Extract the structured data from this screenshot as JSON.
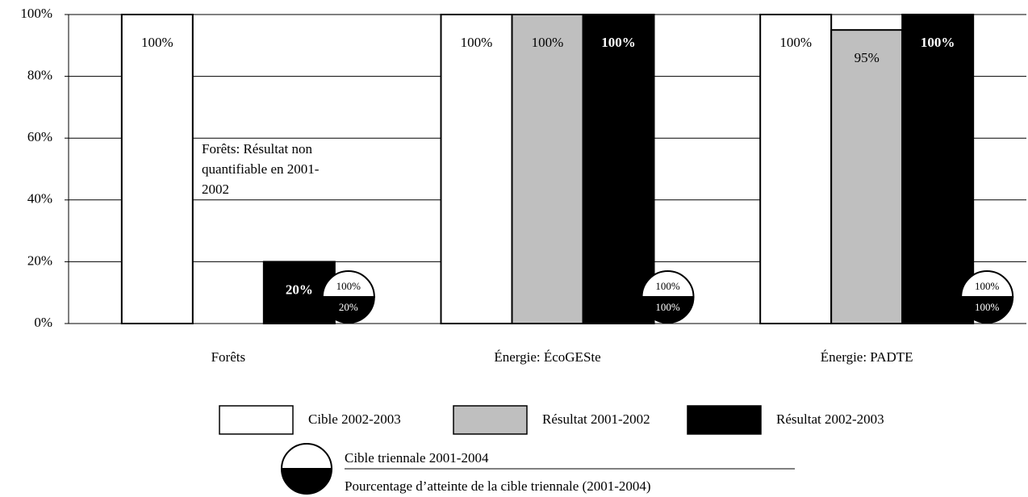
{
  "chart_data": {
    "type": "bar",
    "categories": [
      "Forêts",
      "Énergie: ÉcoGESte",
      "Énergie: PADTE"
    ],
    "series": [
      {
        "name": "Cible 2002-2003",
        "color": "#ffffff",
        "values": [
          100,
          100,
          100
        ],
        "value_labels": [
          "100%",
          "100%",
          "100%"
        ]
      },
      {
        "name": "Résultat 2001-2002",
        "color": "#bfbfbf",
        "values": [
          null,
          100,
          95
        ],
        "value_labels": [
          null,
          "100%",
          "95%"
        ]
      },
      {
        "name": "Résultat 2002-2003",
        "color": "#000000",
        "values": [
          20,
          100,
          100
        ],
        "value_labels": [
          "20%",
          "100%",
          "100%"
        ]
      }
    ],
    "triennial_target": {
      "name": "Cible triennale 2001-2004",
      "values": [
        100,
        100,
        100
      ],
      "value_labels": [
        "100%",
        "100%",
        "100%"
      ]
    },
    "triennial_attainment": {
      "name": "Pourcentage d’atteinte de la cible triennale (2001-2004)",
      "values": [
        20,
        100,
        100
      ],
      "value_labels": [
        "20%",
        "100%",
        "100%"
      ]
    },
    "annotation": [
      "Forêts: Résultat non",
      "quantifiable en 2001-",
      "2002"
    ],
    "ylim": [
      0,
      100
    ],
    "yticks": [
      {
        "value": 0,
        "label": "0%"
      },
      {
        "value": 20,
        "label": "20%"
      },
      {
        "value": 40,
        "label": "40%"
      },
      {
        "value": 60,
        "label": "60%"
      },
      {
        "value": 80,
        "label": "80%"
      },
      {
        "value": 100,
        "label": "100%"
      }
    ],
    "grid": true
  }
}
